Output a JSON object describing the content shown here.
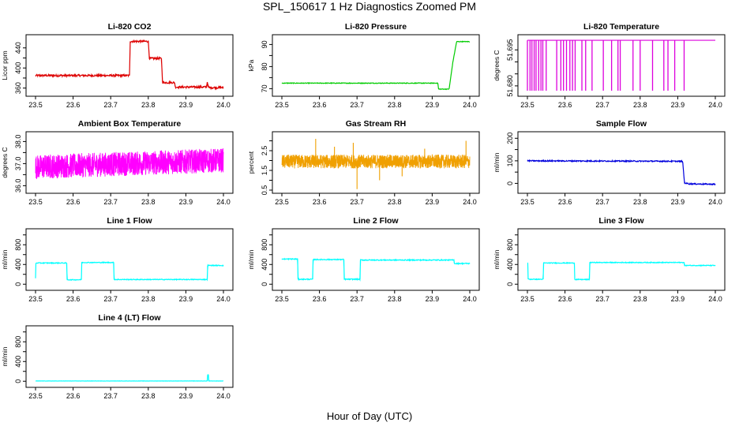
{
  "figure": {
    "title": "SPL_150617  1 Hz Diagnostics Zoomed PM",
    "xlabel": "Hour of Day (UTC)"
  },
  "chart_data": [
    {
      "type": "line",
      "title": "Li-820 CO2",
      "ylabel": "Licor ppm",
      "color": "#dd0000",
      "xlim": [
        23.5,
        24.0
      ],
      "xticks": [
        "23.5",
        "23.6",
        "23.7",
        "23.8",
        "23.9",
        "24.0"
      ],
      "ylim": [
        350,
        460
      ],
      "yticks": [
        360,
        380,
        400,
        420,
        440
      ],
      "ytick_labels": [
        "360",
        "",
        "400",
        "",
        "440"
      ],
      "noise": 2,
      "x": [
        23.5,
        23.75,
        23.752,
        23.8,
        23.803,
        23.835,
        23.838,
        23.87,
        23.872,
        23.955,
        23.957,
        23.96,
        23.962,
        24.0
      ],
      "y": [
        385,
        385,
        453,
        453,
        419,
        419,
        371,
        371,
        362,
        362,
        372,
        362,
        361,
        361
      ]
    },
    {
      "type": "line",
      "title": "Li-820 Pressure",
      "ylabel": "kPa",
      "color": "#00cc00",
      "xlim": [
        23.5,
        24.0
      ],
      "xticks": [
        "23.5",
        "23.6",
        "23.7",
        "23.8",
        "23.9",
        "24.0"
      ],
      "ylim": [
        68,
        93
      ],
      "yticks": [
        70,
        75,
        80,
        85,
        90
      ],
      "ytick_labels": [
        "70",
        "",
        "80",
        "",
        "90"
      ],
      "noise": 0.15,
      "x": [
        23.5,
        23.915,
        23.917,
        23.945,
        23.955,
        23.965,
        24.0
      ],
      "y": [
        72.5,
        72.5,
        69.8,
        69.8,
        82,
        91.3,
        91.3
      ]
    },
    {
      "type": "spikes",
      "title": "Li-820 Temperature",
      "ylabel": "degrees C",
      "color": "#dd00dd",
      "xlim": [
        23.5,
        24.0
      ],
      "xticks": [
        "23.5",
        "23.6",
        "23.7",
        "23.8",
        "23.9",
        "24.0"
      ],
      "ylim": [
        51.677,
        51.7
      ],
      "yticks": [
        51.68,
        51.685,
        51.69,
        51.695
      ],
      "ytick_labels": [
        "51.680",
        "",
        "",
        "51.695"
      ],
      "baseline": 51.699,
      "low": 51.678,
      "spike_x": [
        23.5,
        23.507,
        23.512,
        23.518,
        23.523,
        23.53,
        23.536,
        23.541,
        23.55,
        23.578,
        23.589,
        23.596,
        23.604,
        23.613,
        23.62,
        23.627,
        23.645,
        23.655,
        23.672,
        23.702,
        23.724,
        23.741,
        23.747,
        23.781,
        23.8,
        23.833,
        23.863,
        23.874,
        23.892,
        23.917
      ]
    },
    {
      "type": "noise",
      "title": "Ambient Box Temperature",
      "ylabel": "degrees C",
      "color": "#ff00ff",
      "xlim": [
        23.5,
        24.0
      ],
      "xticks": [
        "23.5",
        "23.6",
        "23.7",
        "23.8",
        "23.9",
        "24.0"
      ],
      "ylim": [
        35.8,
        38.3
      ],
      "yticks": [
        36.0,
        36.5,
        37.0,
        37.5,
        38.0
      ],
      "ytick_labels": [
        "36.0",
        "",
        "37.0",
        "",
        "38.0"
      ],
      "center": 37.0,
      "amp": 0.55,
      "trend": 0.3
    },
    {
      "type": "noise",
      "title": "Gas Stream RH",
      "ylabel": "percent",
      "color": "#f0a000",
      "xlim": [
        23.5,
        24.0
      ],
      "xticks": [
        "23.5",
        "23.6",
        "23.7",
        "23.8",
        "23.9",
        "24.0"
      ],
      "ylim": [
        0.5,
        3.3
      ],
      "yticks": [
        0.5,
        1.0,
        1.5,
        2.0,
        2.5,
        3.0
      ],
      "ytick_labels": [
        "0.5",
        "",
        "1.5",
        "",
        "2.5",
        ""
      ],
      "center": 1.95,
      "amp": 0.35,
      "trend": 0,
      "spikes": [
        [
          23.59,
          3.1
        ],
        [
          23.7,
          0.55
        ],
        [
          23.69,
          2.9
        ],
        [
          23.76,
          1.0
        ],
        [
          23.88,
          2.6
        ],
        [
          23.99,
          3.0
        ],
        [
          23.82,
          1.2
        ],
        [
          23.64,
          2.7
        ]
      ]
    },
    {
      "type": "line",
      "title": "Sample Flow",
      "ylabel": "ml/min",
      "color": "#0000dd",
      "xlim": [
        23.5,
        24.0
      ],
      "xticks": [
        "23.5",
        "23.6",
        "23.7",
        "23.8",
        "23.9",
        "24.0"
      ],
      "ylim": [
        -30,
        215
      ],
      "yticks": [
        0,
        50,
        100,
        150,
        200
      ],
      "ytick_labels": [
        "0",
        "",
        "100",
        "",
        "200"
      ],
      "noise": 2.5,
      "x": [
        23.5,
        23.9,
        23.913,
        23.918,
        23.93,
        24.0
      ],
      "y": [
        100,
        98,
        98,
        2,
        -2,
        -4
      ]
    },
    {
      "type": "line",
      "title": "Line 1 Flow",
      "ylabel": "ml/min",
      "color": "#00ffff",
      "xlim": [
        23.5,
        24.0
      ],
      "xticks": [
        "23.5",
        "23.6",
        "23.7",
        "23.8",
        "23.9",
        "24.0"
      ],
      "ylim": [
        -60,
        1060
      ],
      "yticks": [
        0,
        200,
        400,
        600,
        800,
        1000
      ],
      "ytick_labels": [
        "0",
        "",
        "400",
        "",
        "800",
        ""
      ],
      "noise": 8,
      "x": [
        23.5,
        23.501,
        23.583,
        23.584,
        23.622,
        23.623,
        23.708,
        23.709,
        23.957,
        23.958,
        24.0
      ],
      "y": [
        120,
        430,
        430,
        90,
        90,
        440,
        440,
        95,
        95,
        380,
        380
      ]
    },
    {
      "type": "line",
      "title": "Line 2 Flow",
      "ylabel": "ml/min",
      "color": "#00ffff",
      "xlim": [
        23.5,
        24.0
      ],
      "xticks": [
        "23.5",
        "23.6",
        "23.7",
        "23.8",
        "23.9",
        "24.0"
      ],
      "ylim": [
        -60,
        1060
      ],
      "yticks": [
        0,
        200,
        400,
        600,
        800,
        1000
      ],
      "ytick_labels": [
        "0",
        "",
        "400",
        "",
        "800",
        ""
      ],
      "noise": 10,
      "x": [
        23.5,
        23.542,
        23.543,
        23.582,
        23.583,
        23.665,
        23.666,
        23.708,
        23.709,
        23.958,
        23.959,
        24.0
      ],
      "y": [
        510,
        510,
        100,
        100,
        500,
        500,
        100,
        100,
        490,
        490,
        420,
        420
      ]
    },
    {
      "type": "line",
      "title": "Line 3 Flow",
      "ylabel": "ml/min",
      "color": "#00ffff",
      "xlim": [
        23.5,
        24.0
      ],
      "xticks": [
        "23.5",
        "23.6",
        "23.7",
        "23.8",
        "23.9",
        "24.0"
      ],
      "ylim": [
        -60,
        1060
      ],
      "yticks": [
        0,
        200,
        400,
        600,
        800,
        1000
      ],
      "ytick_labels": [
        "0",
        "",
        "400",
        "",
        "800",
        ""
      ],
      "noise": 8,
      "x": [
        23.5,
        23.501,
        23.502,
        23.542,
        23.543,
        23.625,
        23.626,
        23.665,
        23.666,
        23.917,
        23.918,
        24.0
      ],
      "y": [
        420,
        420,
        100,
        100,
        430,
        430,
        95,
        95,
        440,
        440,
        380,
        380
      ]
    },
    {
      "type": "line",
      "title": "Line 4 (LT) Flow",
      "ylabel": "ml/min",
      "color": "#00ffff",
      "xlim": [
        23.5,
        24.0
      ],
      "xticks": [
        "23.5",
        "23.6",
        "23.7",
        "23.8",
        "23.9",
        "24.0"
      ],
      "ylim": [
        -60,
        1060
      ],
      "yticks": [
        0,
        200,
        400,
        600,
        800,
        1000
      ],
      "ytick_labels": [
        "0",
        "",
        "400",
        "",
        "800",
        ""
      ],
      "noise": 2,
      "x": [
        23.5,
        23.957,
        23.958,
        23.96,
        23.961,
        24.0
      ],
      "y": [
        5,
        5,
        130,
        130,
        5,
        5
      ]
    }
  ]
}
